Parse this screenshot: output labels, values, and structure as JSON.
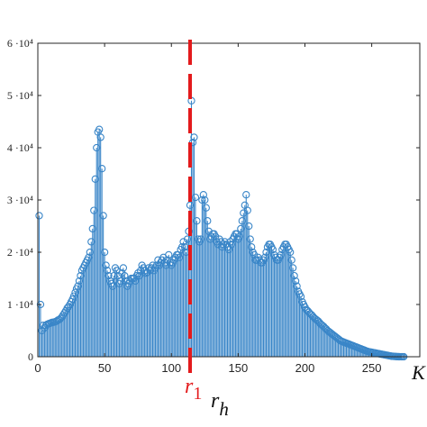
{
  "chart_data": {
    "type": "bar",
    "style": "stem",
    "xlabel": "r_h",
    "ylabel": "",
    "xlim": [
      0,
      286
    ],
    "ylim": [
      0,
      60000
    ],
    "x_ticks": [
      0,
      50,
      100,
      150,
      200,
      250
    ],
    "x_tick_labels": [
      "0",
      "50",
      "100",
      "150",
      "200",
      "250"
    ],
    "y_ticks": [
      0,
      10000,
      20000,
      30000,
      40000,
      50000,
      60000
    ],
    "y_tick_labels": [
      "0",
      "1 ·10⁴",
      "2 ·10⁴",
      "3 ·10⁴",
      "4 ·10⁴",
      "5 ·10⁴",
      "6 ·10⁴"
    ],
    "extra_x_labels": [
      {
        "x": 285,
        "text": "K"
      }
    ],
    "reference_line": {
      "x": 114,
      "label_main": "r",
      "label_sub": "1",
      "color": "#e31a1c",
      "style": "dashed"
    },
    "series_color": "#3a86c8",
    "grid": false,
    "values": [
      27000,
      10000,
      5000,
      6000,
      5500,
      6000,
      6200,
      6300,
      6400,
      6500,
      6600,
      6600,
      6700,
      6800,
      7000,
      7100,
      7300,
      7600,
      8000,
      8400,
      8800,
      9300,
      9600,
      10000,
      10500,
      11000,
      11600,
      12300,
      13000,
      13500,
      14500,
      15500,
      16500,
      17000,
      17500,
      18000,
      18500,
      19000,
      20000,
      22000,
      24500,
      28000,
      34000,
      40000,
      43000,
      43500,
      42000,
      36000,
      27000,
      20000,
      17500,
      16500,
      15500,
      14500,
      14000,
      13500,
      15500,
      17000,
      16500,
      15500,
      14000,
      14500,
      16000,
      17000,
      15500,
      14500,
      13500,
      14000,
      14500,
      15000,
      15000,
      15000,
      14500,
      15500,
      16000,
      15500,
      16500,
      17500,
      17000,
      16500,
      16000,
      16200,
      17000,
      16500,
      17000,
      17500,
      16500,
      17000,
      17500,
      18500,
      17500,
      18000,
      18500,
      19000,
      18000,
      17500,
      18500,
      19500,
      18000,
      17500,
      18000,
      18500,
      19000,
      19500,
      19500,
      19000,
      20500,
      21000,
      22000,
      21000,
      20000,
      22500,
      24000,
      29000,
      49000,
      41000,
      42000,
      30500,
      26000,
      22500,
      22000,
      22500,
      30000,
      31000,
      30000,
      28500,
      26000,
      24000,
      22500,
      23000,
      23500,
      23500,
      23000,
      22000,
      21500,
      22500,
      22000,
      21000,
      21500,
      22000,
      21500,
      21000,
      20500,
      22000,
      21500,
      22500,
      23000,
      23500,
      23500,
      22500,
      23000,
      24500,
      26000,
      27500,
      29000,
      31000,
      28000,
      25000,
      22500,
      21000,
      20000,
      19500,
      18500,
      18500,
      19000,
      18500,
      18000,
      18000,
      18500,
      19000,
      20000,
      21000,
      21500,
      21500,
      21000,
      20500,
      19500,
      19000,
      18500,
      18500,
      19000,
      19500,
      20500,
      21000,
      21500,
      21500,
      21000,
      20500,
      20000,
      18500,
      17000,
      15500,
      14500,
      13500,
      12500,
      12000,
      11500,
      10500,
      10000,
      9500,
      9000,
      8800,
      8500,
      8200,
      8000,
      7700,
      7400,
      7200,
      7000,
      6800,
      6500,
      6200,
      6000,
      5800,
      5500,
      5300,
      5000,
      4800,
      4600,
      4400,
      4200,
      4000,
      3800,
      3600,
      3400,
      3200,
      3000,
      2900,
      2800,
      2700,
      2600,
      2500,
      2400,
      2300,
      2200,
      2100,
      2000,
      1900,
      1800,
      1700,
      1600,
      1500,
      1400,
      1300,
      1200,
      1100,
      1000,
      950,
      900,
      850,
      800,
      750,
      700,
      650,
      600,
      550,
      500,
      450,
      400,
      350,
      300,
      250,
      200,
      150,
      100,
      80,
      60,
      40,
      20,
      10,
      5,
      2,
      1,
      0
    ]
  }
}
